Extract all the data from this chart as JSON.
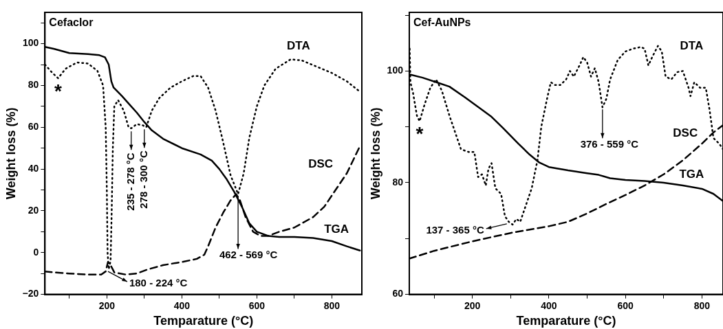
{
  "chart_data": [
    {
      "type": "line",
      "title": "Cefaclor",
      "xlabel": "Temparature (°C)",
      "ylabel": "Weight loss (%)",
      "xlim": [
        35,
        880
      ],
      "xticks": [
        {
          "value": 100,
          "label": null
        },
        200,
        {
          "value": 300,
          "label": null
        },
        400,
        {
          "value": 500,
          "label": null
        },
        600,
        {
          "value": 700,
          "label": null
        },
        800
      ],
      "ylim": [
        -20,
        115
      ],
      "yticks": [
        -20,
        {
          "value": -10,
          "label": null
        },
        0,
        {
          "value": 10,
          "label": null
        },
        20,
        {
          "value": 30,
          "label": null
        },
        40,
        {
          "value": 50,
          "label": null
        },
        60,
        {
          "value": 70,
          "label": null
        },
        80,
        {
          "value": 90,
          "label": null
        },
        100,
        {
          "value": 110,
          "label": null
        }
      ],
      "grid": false,
      "legend": false,
      "marker": "none",
      "series": [
        {
          "name": "TGA",
          "color": "#000000",
          "line_style": "solid",
          "x": [
            35,
            60,
            100,
            150,
            180,
            195,
            205,
            212,
            218,
            240,
            260,
            280,
            300,
            320,
            350,
            400,
            450,
            480,
            500,
            520,
            540,
            560,
            580,
            600,
            630,
            660,
            700,
            750,
            800,
            840,
            875
          ],
          "values": [
            98.5,
            97.5,
            95.5,
            95,
            94.5,
            93.5,
            90,
            82,
            79,
            75,
            71,
            67,
            62.5,
            58.5,
            54.5,
            50,
            47,
            44,
            40,
            35,
            29,
            22,
            14,
            10,
            8,
            7.5,
            7.5,
            7,
            5.5,
            3,
            1
          ]
        },
        {
          "name": "DTA",
          "color": "#000000",
          "line_style": "dotted",
          "x": [
            35,
            55,
            70,
            90,
            120,
            150,
            175,
            190,
            197,
            200,
            202,
            205,
            210,
            213,
            216,
            220,
            230,
            245,
            258,
            265,
            280,
            295,
            305,
            320,
            340,
            370,
            400,
            430,
            450,
            470,
            490,
            510,
            530,
            550,
            565,
            580,
            600,
            620,
            650,
            690,
            720,
            760,
            800,
            840,
            875
          ],
          "values": [
            90,
            86,
            83.5,
            88,
            91,
            90.5,
            87,
            80,
            60,
            30,
            0,
            -8,
            -4,
            20,
            50,
            70,
            73,
            68,
            60,
            59.5,
            61.5,
            61,
            60,
            68,
            74,
            79,
            82,
            84.5,
            84.5,
            79,
            68,
            53,
            37,
            28,
            38,
            55,
            70,
            80,
            88,
            92.5,
            92,
            89,
            86,
            82,
            77
          ]
        },
        {
          "name": "DSC",
          "color": "#000000",
          "line_style": "dashed",
          "x": [
            35,
            60,
            100,
            150,
            185,
            197,
            203,
            210,
            220,
            250,
            280,
            310,
            350,
            400,
            440,
            460,
            470,
            490,
            510,
            530,
            545,
            555,
            570,
            590,
            610,
            630,
            660,
            700,
            750,
            780,
            810,
            840,
            875
          ],
          "values": [
            -9,
            -9.5,
            -10,
            -10.5,
            -10.5,
            -9,
            -4.5,
            -6,
            -9.5,
            -10.5,
            -10,
            -8,
            -6,
            -4.5,
            -3,
            -1,
            3,
            12,
            19,
            25,
            28,
            25,
            17,
            10,
            8,
            8,
            10,
            12,
            17,
            22,
            30,
            38,
            51
          ]
        }
      ],
      "annotations": [
        {
          "text": "*",
          "x": 70,
          "y": 83.5
        },
        {
          "text": "235 - 278 °C",
          "x": 265,
          "y": 59
        },
        {
          "text": "278 - 300 °C",
          "x": 300,
          "y": 60
        },
        {
          "text": "462 - 569 °C",
          "x": 550,
          "y": 28
        },
        {
          "text": "180 - 224 °C",
          "x": 203,
          "y": -8
        }
      ]
    },
    {
      "type": "line",
      "title": "Cef-AuNPs",
      "xlabel": "Temparature (°C)",
      "ylabel": "Weight loss (%)",
      "xlim": [
        35,
        855
      ],
      "xticks": [
        {
          "value": 100,
          "label": null
        },
        200,
        {
          "value": 300,
          "label": null
        },
        400,
        {
          "value": 500,
          "label": null
        },
        600,
        {
          "value": 700,
          "label": null
        },
        800
      ],
      "ylim": [
        60,
        110.5
      ],
      "yticks": [
        60,
        {
          "value": 70,
          "label": null
        },
        80,
        {
          "value": 90,
          "label": null
        },
        100,
        {
          "value": 110,
          "label": null
        }
      ],
      "grid": false,
      "legend": false,
      "marker": "none",
      "series": [
        {
          "name": "TGA",
          "color": "#000000",
          "line_style": "solid",
          "x": [
            35,
            70,
            110,
            140,
            180,
            220,
            250,
            280,
            320,
            350,
            375,
            400,
            450,
            500,
            530,
            560,
            600,
            650,
            700,
            750,
            800,
            830,
            855
          ],
          "values": [
            99.4,
            98.8,
            97.9,
            97.2,
            95.3,
            93.3,
            91.8,
            89.8,
            87,
            85,
            83.6,
            82.8,
            82.2,
            81.7,
            81.4,
            80.8,
            80.5,
            80.3,
            80,
            79.5,
            78.9,
            78,
            76.7
          ]
        },
        {
          "name": "DTA",
          "color": "#000000",
          "line_style": "dotted",
          "x": [
            36,
            38,
            45,
            55,
            62,
            75,
            90,
            105,
            120,
            140,
            160,
            170,
            190,
            205,
            215,
            225,
            235,
            242,
            250,
            260,
            275,
            285,
            295,
            305,
            315,
            325,
            340,
            355,
            370,
            380,
            395,
            405,
            415,
            430,
            445,
            455,
            465,
            480,
            490,
            500,
            510,
            520,
            530,
            540,
            550,
            560,
            580,
            600,
            620,
            640,
            650,
            660,
            670,
            685,
            695,
            705,
            720,
            735,
            750,
            765,
            770,
            780,
            795,
            810,
            820,
            830,
            845,
            855
          ],
          "values": [
            104,
            98,
            96,
            92,
            91,
            94,
            97,
            98.5,
            96.5,
            92,
            88,
            86,
            85.5,
            85.5,
            81,
            81.5,
            79.5,
            82.5,
            83.5,
            79,
            78,
            74,
            73,
            72.5,
            73.5,
            73,
            76,
            79,
            84,
            90,
            95,
            98,
            97.5,
            97.5,
            98.5,
            100,
            99,
            101,
            102.5,
            101.5,
            99,
            100.5,
            98,
            93.5,
            95,
            98.5,
            102,
            103.5,
            104,
            104.3,
            104,
            101,
            102.5,
            104.5,
            103.5,
            99,
            98.5,
            99.8,
            100,
            97,
            95.5,
            98,
            97,
            97,
            93,
            88,
            87,
            86
          ]
        },
        {
          "name": "DSC",
          "color": "#000000",
          "line_style": "dashed",
          "x": [
            35,
            100,
            200,
            300,
            400,
            450,
            500,
            550,
            600,
            650,
            700,
            750,
            800,
            830,
            855
          ],
          "values": [
            66.4,
            67.8,
            69.5,
            71,
            72.2,
            73,
            74.5,
            76.2,
            77.8,
            79.5,
            81.5,
            84,
            87,
            89,
            90.3
          ]
        }
      ],
      "annotations": [
        {
          "text": "*",
          "x": 62,
          "y": 91
        },
        {
          "text": "376 - 559 °C",
          "x": 540,
          "y": 93.5
        },
        {
          "text": "137 - 365 °C",
          "x": 290,
          "y": 73
        }
      ]
    }
  ]
}
